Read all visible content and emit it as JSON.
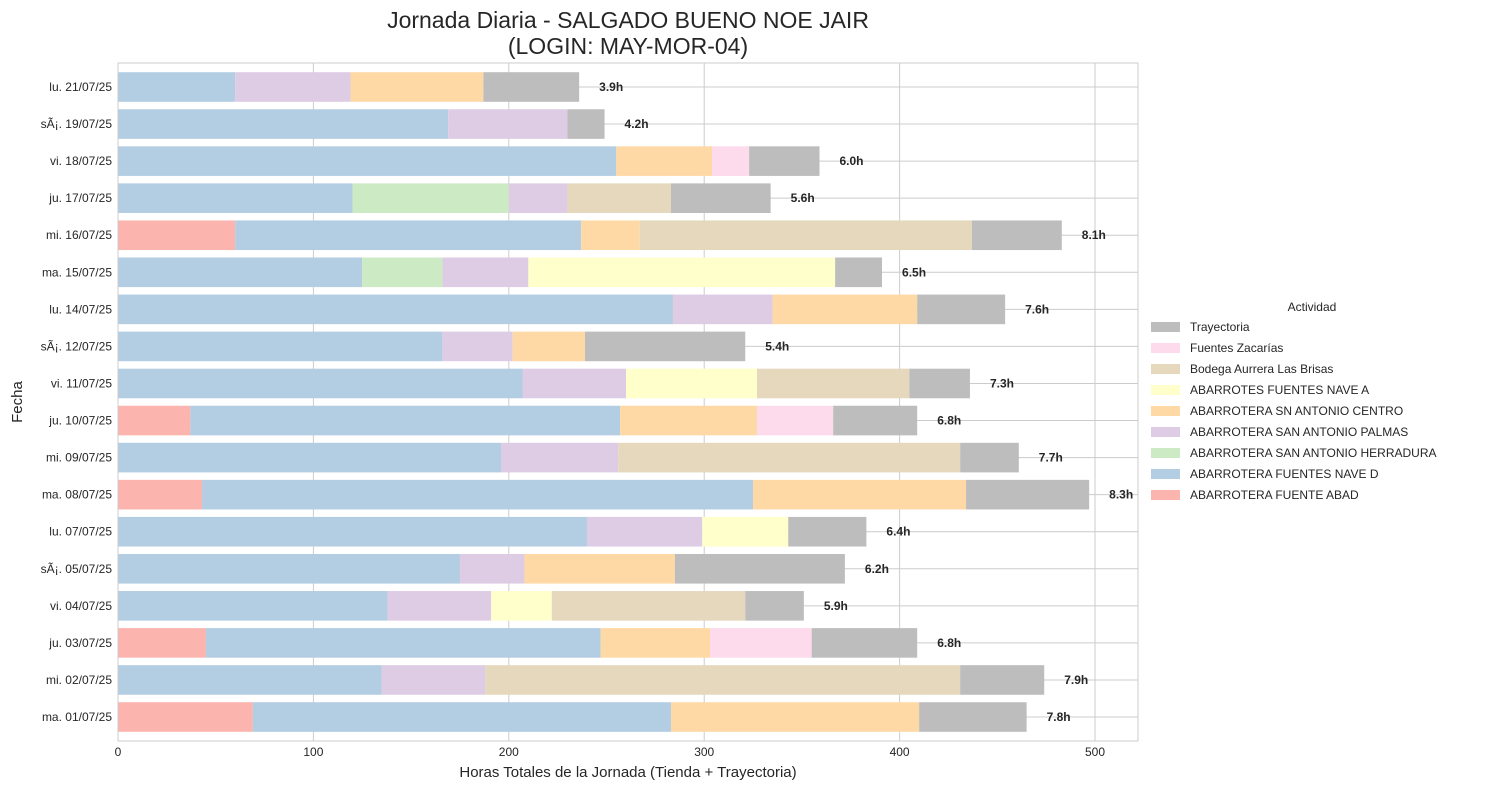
{
  "chart_data": {
    "type": "bar",
    "orientation": "horizontal",
    "stacked": true,
    "title": "Jornada Diaria - SALGADO BUENO NOE JAIR",
    "subtitle": "(LOGIN: MAY-MOR-04)",
    "xlabel": "Horas Totales de la Jornada (Tienda + Trayectoria)",
    "ylabel": "Fecha",
    "xlim": [
      0,
      522
    ],
    "xticks": [
      0,
      100,
      200,
      300,
      400,
      500
    ],
    "grid": true,
    "legend_title": "Actividad",
    "legend_position": "center-right",
    "categories": [
      "lu. 21/07/25",
      "sÃ¡. 19/07/25",
      "vi. 18/07/25",
      "ju. 17/07/25",
      "mi. 16/07/25",
      "ma. 15/07/25",
      "lu. 14/07/25",
      "sÃ¡. 12/07/25",
      "vi. 11/07/25",
      "ju. 10/07/25",
      "mi. 09/07/25",
      "ma. 08/07/25",
      "lu. 07/07/25",
      "sÃ¡. 05/07/25",
      "vi. 04/07/25",
      "ju. 03/07/25",
      "mi. 02/07/25",
      "ma. 01/07/25"
    ],
    "totals": [
      "3.9h",
      "4.2h",
      "6.0h",
      "5.6h",
      "8.1h",
      "6.5h",
      "7.6h",
      "5.4h",
      "7.3h",
      "6.8h",
      "7.7h",
      "8.3h",
      "6.4h",
      "6.2h",
      "5.9h",
      "6.8h",
      "7.9h",
      "7.8h"
    ],
    "series": [
      {
        "name": "ABARROTERA FUENTE ABAD",
        "color": "#fbb4ae",
        "values": [
          0,
          0,
          0,
          0,
          60,
          0,
          0,
          0,
          0,
          37,
          0,
          43,
          0,
          0,
          0,
          45,
          0,
          69
        ]
      },
      {
        "name": "ABARROTERA FUENTES NAVE D",
        "color": "#b3cde3",
        "values": [
          60,
          169,
          255,
          120,
          177,
          125,
          284,
          166,
          207,
          220,
          196,
          282,
          240,
          175,
          138,
          202,
          135,
          214
        ]
      },
      {
        "name": "ABARROTERA SAN ANTONIO HERRADURA",
        "color": "#ccebc5",
        "values": [
          0,
          0,
          0,
          80,
          0,
          41,
          0,
          0,
          0,
          0,
          0,
          0,
          0,
          0,
          0,
          0,
          0,
          0
        ]
      },
      {
        "name": "ABARROTERA SAN ANTONIO PALMAS",
        "color": "#decbe4",
        "values": [
          59,
          61,
          0,
          30,
          0,
          44,
          51,
          36,
          53,
          0,
          60,
          0,
          59,
          33,
          53,
          0,
          53,
          0
        ]
      },
      {
        "name": "ABARROTERA SN ANTONIO CENTRO",
        "color": "#fed9a6",
        "values": [
          68,
          0,
          49,
          0,
          30,
          0,
          74,
          37,
          0,
          70,
          0,
          109,
          0,
          77,
          0,
          56,
          0,
          127
        ]
      },
      {
        "name": "ABARROTES FUENTES NAVE A",
        "color": "#ffffcc",
        "values": [
          0,
          0,
          0,
          0,
          0,
          157,
          0,
          0,
          67,
          0,
          0,
          0,
          44,
          0,
          31,
          0,
          0,
          0
        ]
      },
      {
        "name": "Bodega Aurrera Las Brisas",
        "color": "#e5d8bd",
        "values": [
          0,
          0,
          0,
          53,
          170,
          0,
          0,
          0,
          78,
          0,
          175,
          0,
          0,
          0,
          99,
          0,
          243,
          0
        ]
      },
      {
        "name": "Fuentes Zacarías",
        "color": "#fddaec",
        "values": [
          0,
          0,
          19,
          0,
          0,
          0,
          0,
          0,
          0,
          39,
          0,
          0,
          0,
          0,
          0,
          52,
          0,
          0
        ]
      },
      {
        "name": "Trayectoria",
        "color": "#bdbdbd",
        "values": [
          49,
          19,
          36,
          51,
          46,
          24,
          45,
          82,
          31,
          43,
          30,
          63,
          40,
          87,
          30,
          54,
          43,
          55
        ]
      }
    ]
  }
}
